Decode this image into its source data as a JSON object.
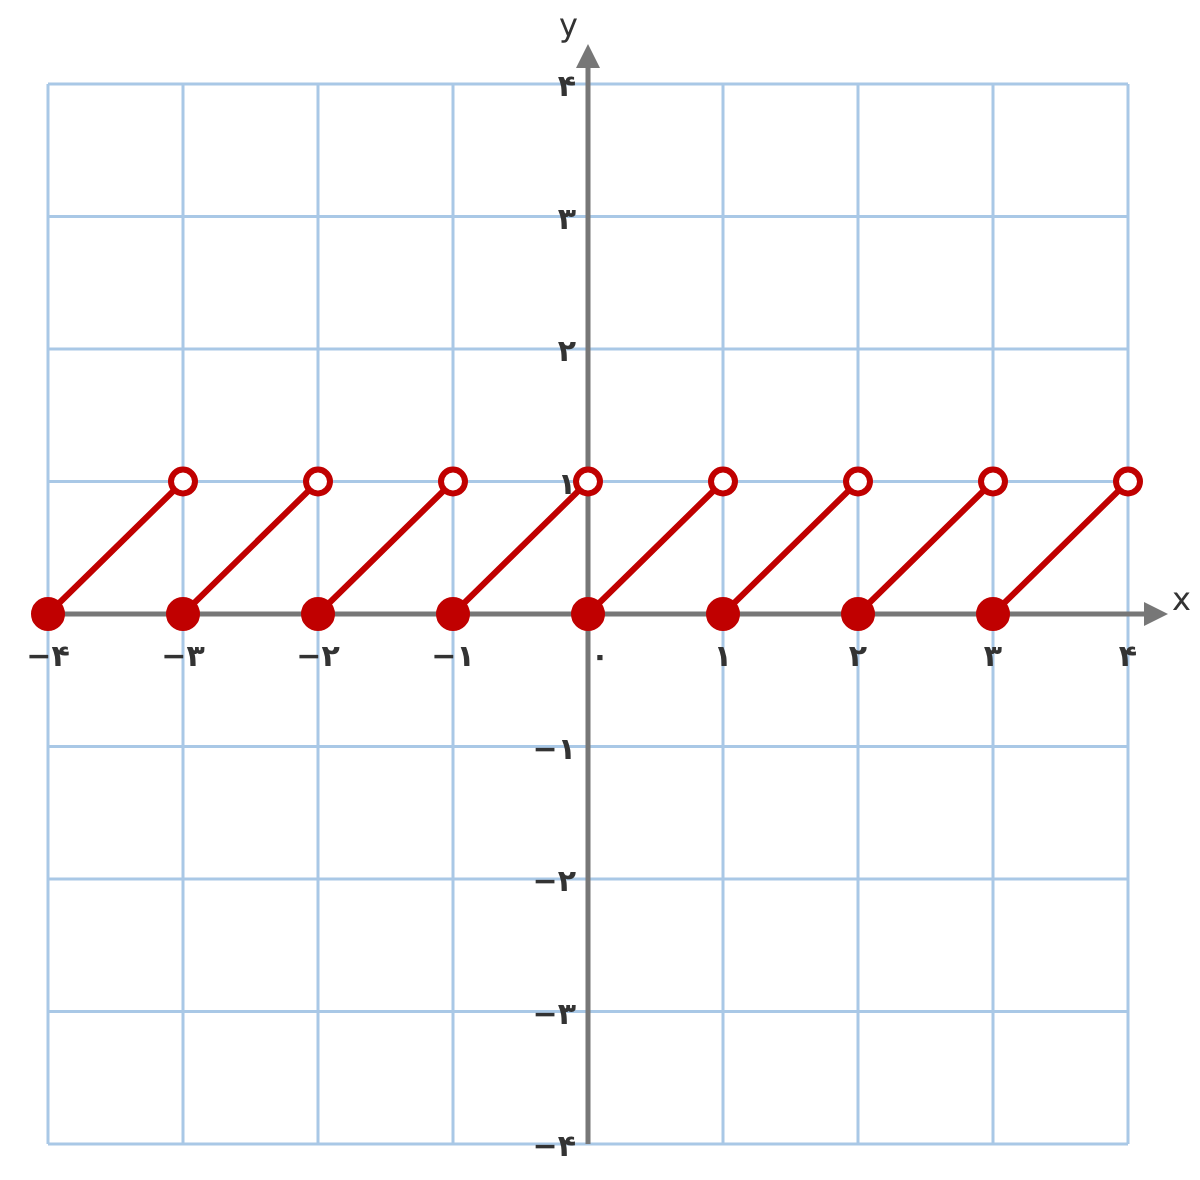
{
  "chart_data": {
    "type": "line",
    "xlabel": "x",
    "ylabel": "y",
    "xlim": [
      -4,
      4
    ],
    "ylim": [
      -4,
      4
    ],
    "xticks": [
      {
        "value": -4,
        "label": "−۴"
      },
      {
        "value": -3,
        "label": "−۳"
      },
      {
        "value": -2,
        "label": "−۲"
      },
      {
        "value": -1,
        "label": "−۱"
      },
      {
        "value": 0,
        "label": "۰"
      },
      {
        "value": 1,
        "label": "۱"
      },
      {
        "value": 2,
        "label": "۲"
      },
      {
        "value": 3,
        "label": "۳"
      },
      {
        "value": 4,
        "label": "۴"
      }
    ],
    "yticks": [
      {
        "value": -4,
        "label": "−۴"
      },
      {
        "value": -3,
        "label": "−۳"
      },
      {
        "value": -2,
        "label": "−۲"
      },
      {
        "value": -1,
        "label": "−۱"
      },
      {
        "value": 1,
        "label": "۱"
      },
      {
        "value": 2,
        "label": "۲"
      },
      {
        "value": 3,
        "label": "۳"
      },
      {
        "value": 4,
        "label": "۴"
      }
    ],
    "grid": true,
    "series": [
      {
        "color": "#c00000",
        "x": [
          -4,
          -3,
          null,
          -3,
          -2,
          null,
          -2,
          -1,
          null,
          -1,
          0,
          null,
          0,
          1,
          null,
          1,
          2,
          null,
          2,
          3,
          null,
          3,
          4
        ],
        "values": [
          0,
          1,
          null,
          0,
          1,
          null,
          0,
          1,
          null,
          0,
          1,
          null,
          0,
          1,
          null,
          0,
          1,
          null,
          0,
          1,
          null,
          0,
          1
        ]
      },
      {
        "type": "scatter",
        "marker": "circle",
        "color": "#c00000",
        "x": [
          -4,
          -3,
          -2,
          -1,
          0,
          1,
          2,
          3
        ],
        "values": [
          0,
          0,
          0,
          0,
          0,
          0,
          0,
          0
        ]
      },
      {
        "type": "scatter",
        "marker": "circle",
        "color": "#c00000",
        "x": [
          -3,
          -2,
          -1,
          0,
          1,
          2,
          3,
          4
        ],
        "values": [
          1,
          1,
          1,
          1,
          1,
          1,
          1,
          1
        ]
      }
    ]
  }
}
